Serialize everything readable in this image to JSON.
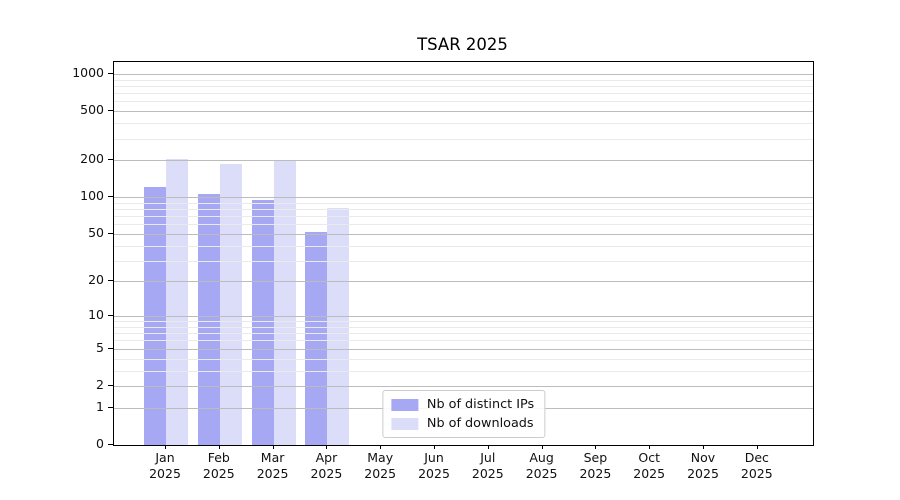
{
  "title": "TSAR 2025",
  "colors": {
    "bar_distinct_ips": "#a6a8f3",
    "bar_downloads": "#dcddf9",
    "grid_major": "#bcbcbc",
    "grid_minor": "#eaeaea",
    "axis_line": "#000000",
    "text": "#111111",
    "legend_border": "#cccccc"
  },
  "chart_data": {
    "type": "bar",
    "title": "TSAR 2025",
    "y_scale": "log(1+x)",
    "ylim": [
      0,
      1250
    ],
    "grid": "on",
    "legend_position": "lower center",
    "categories": [
      "Jan 2025",
      "Feb 2025",
      "Mar 2025",
      "Apr 2025",
      "May 2025",
      "Jun 2025",
      "Jul 2025",
      "Aug 2025",
      "Sep 2025",
      "Oct 2025",
      "Nov 2025",
      "Dec 2025"
    ],
    "series": [
      {
        "name": "Nb of distinct IPs",
        "color": "#a6a8f3",
        "values": [
          120,
          106,
          95,
          52,
          null,
          null,
          null,
          null,
          null,
          null,
          null,
          null
        ]
      },
      {
        "name": "Nb of downloads",
        "color": "#dcddf9",
        "values": [
          205,
          188,
          202,
          81,
          null,
          null,
          null,
          null,
          null,
          null,
          null,
          null
        ]
      }
    ],
    "y_ticks": [
      0,
      1,
      2,
      5,
      10,
      20,
      50,
      100,
      200,
      500,
      1000
    ],
    "y_minor_gridlines": [
      3,
      4,
      6,
      7,
      8,
      9,
      30,
      40,
      60,
      70,
      80,
      90,
      300,
      400,
      600,
      700,
      800,
      900
    ]
  }
}
